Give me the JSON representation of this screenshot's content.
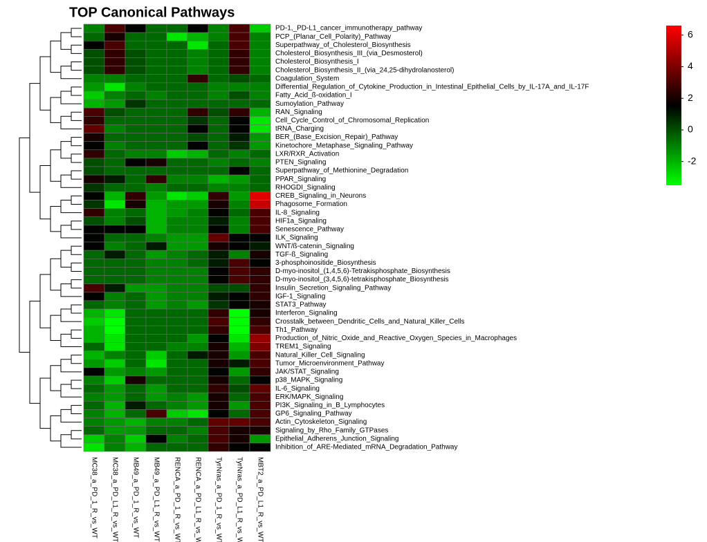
{
  "chart_data": {
    "type": "heatmap",
    "title": "TOP Canonical Pathways",
    "rows": [
      "PD-1,_PD-L1_cancer_immunotherapy_pathway",
      "PCP_(Planar_Cell_Polarity)_Pathway",
      "Superpathway_of_Cholesterol_Biosynthesis",
      "Cholesterol_Biosynthesis_III_(via_Desmosterol)",
      "Cholesterol_Biosynthesis_I",
      "Cholesterol_Biosynthesis_II_(via_24,25-dihydrolanosterol)",
      "Coagulation_System",
      "Differential_Regulation_of_Cytokine_Production_in_Intestinal_Epithelial_Cells_by_IL-17A_and_IL-17F",
      "Fatty_Acid_ß-oxidation_I",
      "Sumoylation_Pathway",
      "RAN_Signaling",
      "Cell_Cycle_Control_of_Chromosomal_Replication",
      "tRNA_Charging",
      "BER_(Base_Excision_Repair)_Pathway",
      "Kinetochore_Metaphase_Signaling_Pathway",
      "LXR/RXR_Activation",
      "PTEN_Signaling",
      "Superpathway_of_Methionine_Degradation",
      "PPAR_Signaling",
      "RHOGDI_Signaling",
      "CREB_Signaling_in_Neurons",
      "Phagosome_Formation",
      "IL-8_Signaling",
      "HIF1a_Signaling",
      "Senescence_Pathway",
      "ILK_Signaling",
      "WNT/ß-catenin_Signaling",
      "TGF-ß_Signaling",
      "3-phosphoinositide_Biosynthesis",
      "D-myo-inositol_(1,4,5,6)-Tetrakisphosphate_Biosynthesis",
      "D-myo-inositol_(3,4,5,6)-tetrakisphosphate_Biosynthesis",
      "Insulin_Secretion_Signaling_Pathway",
      "IGF-1_Signaling",
      "STAT3_Pathway",
      "Interferon_Signaling",
      "Crosstalk_between_Dendritic_Cells_and_Natural_Killer_Cells",
      "Th1_Pathway",
      "Production_of_Nitric_Oxide_and_Reactive_Oxygen_Species_in_Macrophages",
      "TREM1_Signaling",
      "Natural_Killer_Cell_Signaling",
      "Tumor_Microenvironment_Pathway",
      "JAK/STAT_Signaling",
      "p38_MAPK_Signaling",
      "IL-6_Signaling",
      "ERK/MAPK_Signaling",
      "PI3K_Signaling_in_B_Lymphocytes",
      "GP6_Signaling_Pathway",
      "Actin_Cytoskeleton_Signaling",
      "Signaling_by_Rho_Family_GTPases",
      "Epithelial_Adherens_Junction_Signaling",
      "Inhibition_of_ARE-Mediated_mRNA_Degradation_Pathway"
    ],
    "columns": [
      "MC38_a_PD_1_R_vs_WT",
      "MC38_a_PD_L1_R_vs_WT",
      "MB49_a_PD_1_R_vs_WT",
      "MB49_a_PD_L1_R_vs_WT",
      "RENCA_a_PD_1_R_vs_WT",
      "RENCA_a_PD_L1_R_vs_WT",
      "TyrNras_a_PD_1_R_vs_WT",
      "TyrNras_a_PD_L1_R_vs_WT",
      "MBT2_a_PD_L1_R_vs_WT"
    ],
    "values": [
      [
        -1,
        3,
        1.5,
        -0.5,
        -0.5,
        1.5,
        -1,
        3,
        -2.5
      ],
      [
        -0.5,
        2,
        -0.5,
        -0.5,
        -3,
        -2,
        -1,
        3,
        -1
      ],
      [
        1.5,
        3,
        -0.5,
        -0.5,
        -0.5,
        -3,
        -0.5,
        3,
        -1
      ],
      [
        0,
        2.5,
        0,
        -0.5,
        -0.5,
        -1,
        -0.5,
        2.5,
        -1
      ],
      [
        0,
        2.5,
        0,
        -0.5,
        -0.5,
        -1,
        -0.5,
        2.5,
        -1
      ],
      [
        0,
        2.5,
        0,
        -0.5,
        -0.5,
        -1,
        -0.5,
        2.5,
        -1
      ],
      [
        -1,
        -1,
        -0.5,
        -0.5,
        -0.5,
        2.5,
        -0.5,
        0,
        -0.5
      ],
      [
        -1.5,
        -3,
        -1,
        -0.5,
        -0.5,
        -0.5,
        -1,
        -1,
        -1
      ],
      [
        -2.5,
        -1,
        -0.5,
        -1,
        -0.5,
        -0.5,
        -1,
        0,
        -1
      ],
      [
        -2,
        -1.5,
        0.5,
        -0.5,
        -0.5,
        -0.5,
        -0.5,
        -0.5,
        -0.5
      ],
      [
        3,
        0,
        -0.5,
        -0.5,
        -0.5,
        2.5,
        0,
        2.5,
        -2
      ],
      [
        2.5,
        -0.5,
        -0.5,
        -0.5,
        -0.5,
        0.5,
        -0.5,
        1.5,
        -3
      ],
      [
        3.5,
        -1,
        -0.5,
        -0.5,
        -0.5,
        1.5,
        -0.5,
        1.5,
        -3
      ],
      [
        2,
        -0.5,
        -0.5,
        -0.5,
        -0.5,
        0,
        -0.5,
        1,
        -1.5
      ],
      [
        1.5,
        -1,
        -0.5,
        -0.5,
        -0.5,
        1.5,
        -0.5,
        0.5,
        -1.5
      ],
      [
        2.5,
        -0.5,
        -1,
        -1,
        -2.5,
        -2,
        -0.5,
        -1,
        -0.5
      ],
      [
        0,
        -0.5,
        1.5,
        2,
        -0.5,
        -0.5,
        -1,
        -0.5,
        -1
      ],
      [
        0,
        -0.5,
        -0.5,
        -0.5,
        -0.5,
        -0.5,
        -0.5,
        1.5,
        -0.5
      ],
      [
        2,
        1,
        -0.5,
        2.5,
        -1,
        -1,
        -2,
        -1.5,
        -0.5
      ],
      [
        0.5,
        -0.5,
        -0.5,
        -1,
        -0.5,
        -0.5,
        -1,
        -1,
        -0.5
      ],
      [
        1.5,
        -2,
        2.5,
        -1.5,
        -3,
        -2.5,
        2.5,
        -1.5,
        6
      ],
      [
        0.5,
        -3,
        2,
        -2,
        -1.5,
        -1.5,
        2,
        -1,
        5.5
      ],
      [
        2.5,
        -1,
        -0.5,
        -2,
        -1.5,
        -1,
        1.5,
        -0.5,
        3
      ],
      [
        0,
        -1,
        0,
        -2,
        -1,
        -1,
        1,
        -1,
        3
      ],
      [
        1.5,
        1.5,
        1.5,
        -2,
        -1,
        -1,
        1.5,
        -1,
        3
      ],
      [
        1.5,
        -0.5,
        -0.5,
        -1,
        -1.5,
        -1.5,
        3.5,
        1.5,
        1.5
      ],
      [
        1.5,
        -1,
        -0.5,
        1,
        -1.5,
        -1.5,
        2,
        1.5,
        1
      ],
      [
        -0.5,
        1,
        -0.5,
        -1.5,
        -1,
        -0.5,
        1,
        -1,
        2
      ],
      [
        -0.5,
        -0.5,
        -0.5,
        -1,
        -1,
        -0.5,
        1,
        3,
        1.5
      ],
      [
        -0.5,
        -0.5,
        -0.5,
        -1,
        -1,
        -1,
        1.5,
        3,
        2.5
      ],
      [
        -0.5,
        -0.5,
        -0.5,
        -1,
        -1,
        -1,
        1.5,
        3,
        2.5
      ],
      [
        3,
        1,
        -1.5,
        -1.5,
        -1,
        -1,
        0,
        0,
        2.5
      ],
      [
        1.5,
        -1,
        -0.5,
        -1.5,
        -1,
        -1,
        1,
        1.5,
        2.5
      ],
      [
        -0.5,
        -1,
        -0.5,
        -1.5,
        -1,
        -1.5,
        0.5,
        1.5,
        2
      ],
      [
        -2,
        -3,
        -0.5,
        -0.5,
        -0.5,
        -0.5,
        2.5,
        -3.5,
        2
      ],
      [
        -2.5,
        -3.5,
        -0.5,
        -0.5,
        -0.5,
        -0.5,
        3,
        -3.5,
        2.5
      ],
      [
        -2,
        -3.5,
        -0.5,
        -0.5,
        -0.5,
        -0.5,
        2.5,
        -3.5,
        3
      ],
      [
        -2,
        -3,
        -0.5,
        -0.5,
        -0.5,
        -1.5,
        1.5,
        -3,
        4.5
      ],
      [
        -0.5,
        -3,
        -0.5,
        -0.5,
        -1,
        -1,
        2,
        -2,
        4
      ],
      [
        -2,
        -1,
        -0.5,
        -2.5,
        -0.5,
        1,
        2,
        -1.5,
        3
      ],
      [
        -1.5,
        -2.5,
        -0.5,
        -3,
        -0.5,
        -0.5,
        2,
        1,
        3
      ],
      [
        1.5,
        -1.5,
        -1,
        -1.5,
        -0.5,
        -0.5,
        1.5,
        -1.5,
        2.5
      ],
      [
        -1,
        -2.5,
        2,
        -0.5,
        -0.5,
        -0.5,
        2,
        -0.5,
        1.5
      ],
      [
        -0.5,
        -1.5,
        -0.5,
        -1.5,
        -0.5,
        -0.5,
        2.5,
        0,
        3.5
      ],
      [
        -1,
        -1.5,
        -0.5,
        -1.5,
        -1,
        -1.5,
        2,
        -0.5,
        3
      ],
      [
        -0.5,
        -2,
        1,
        -0.5,
        -1,
        -1.5,
        2,
        -1.5,
        3
      ],
      [
        -1,
        -2,
        -0.5,
        3,
        -2.5,
        -3,
        1.5,
        -0.5,
        3
      ],
      [
        -1,
        -1.5,
        -2,
        -1,
        -1,
        -0.5,
        3.5,
        3.5,
        3
      ],
      [
        -0.5,
        -1.5,
        -1.5,
        -0.5,
        -0.5,
        -1,
        3,
        2,
        2
      ],
      [
        -2.5,
        -1,
        -2.5,
        1.5,
        -1,
        -0.5,
        3,
        2,
        -1.5
      ],
      [
        -3,
        -1,
        -2,
        -0.5,
        -0.5,
        -0.5,
        2.5,
        1.5,
        1.5
      ]
    ],
    "zlim": [
      -3.5,
      6.6
    ],
    "zticks": [
      -2,
      0,
      2,
      4,
      6
    ],
    "colors": [
      "#00ff00",
      "#000000",
      "#ff0000"
    ]
  }
}
